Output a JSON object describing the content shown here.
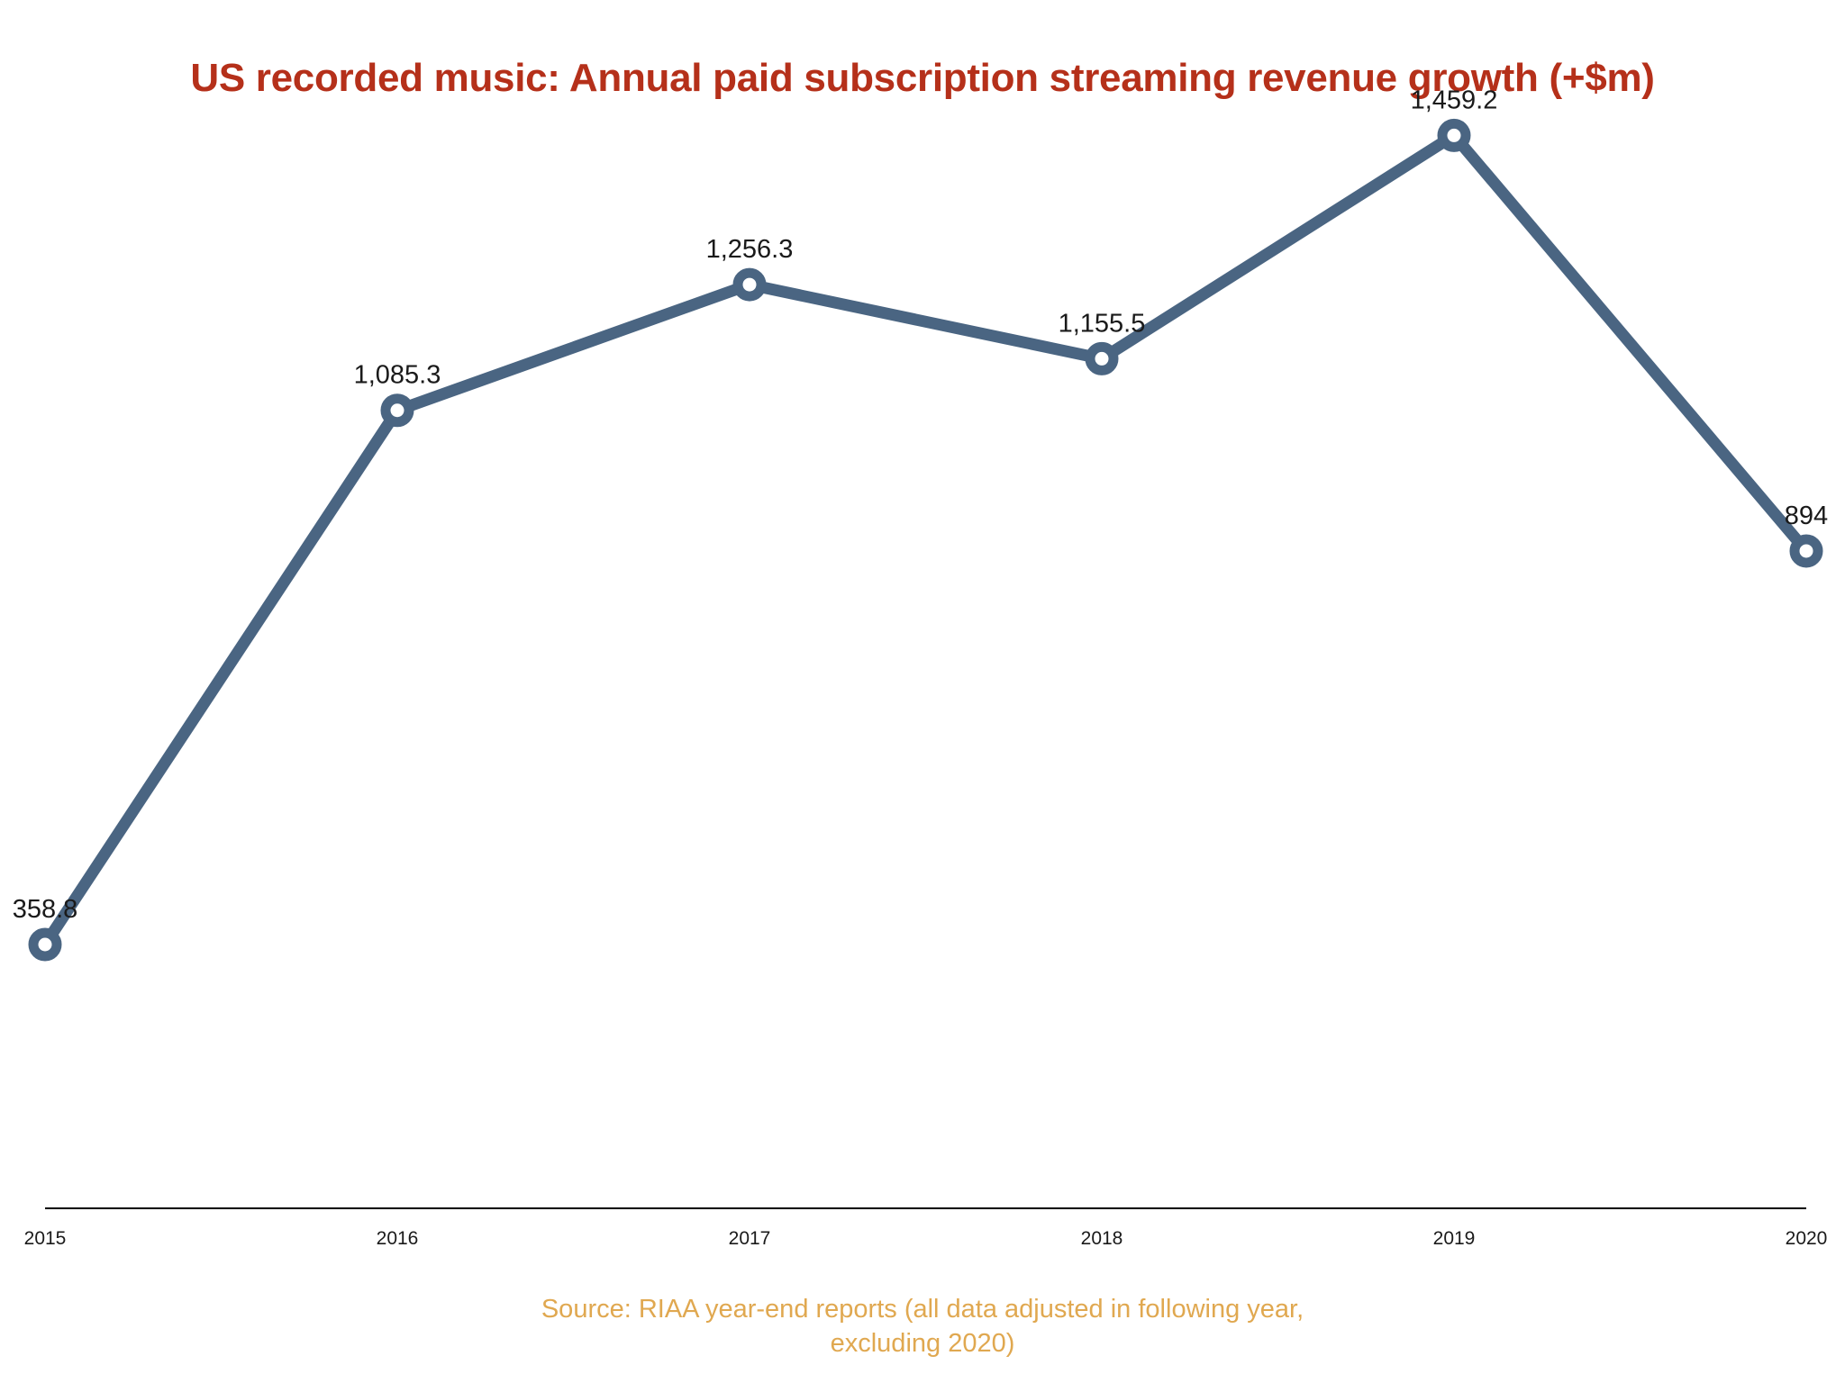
{
  "colors": {
    "title": "#b5301a",
    "line": "#4a6582",
    "marker_fill": "#ffffff",
    "axis": "#000000",
    "text": "#1a1a1a",
    "source": "#e0a850"
  },
  "source": {
    "line1": "Source: RIAA year-end reports (all data adjusted in following year,",
    "line2": "excluding 2020)"
  },
  "chart_data": {
    "type": "line",
    "title": "US recorded music: Annual paid subscription streaming revenue growth (+$m)",
    "xlabel": "",
    "ylabel": "",
    "categories": [
      "2015",
      "2016",
      "2017",
      "2018",
      "2019",
      "2020"
    ],
    "values": [
      358.8,
      1085.3,
      1256.3,
      1155.5,
      1459.2,
      894
    ],
    "data_labels": [
      "358.8",
      "1,085.3",
      "1,256.3",
      "1,155.5",
      "1,459.2",
      "894"
    ],
    "ylim": [
      0,
      1720
    ],
    "grid": false,
    "legend": "none",
    "y_axis_visible": false
  }
}
